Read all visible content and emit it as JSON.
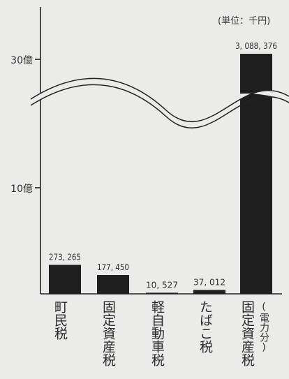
{
  "chart_data": {
    "type": "bar",
    "unit_note": "(単位：千円)",
    "categories": [
      "町民税",
      "固定資産税",
      "軽自動車税",
      "たばこ税",
      "固定資産税"
    ],
    "category_notes": [
      "",
      "",
      "",
      "",
      "(電力分)"
    ],
    "values": [
      273265,
      177450,
      10527,
      37012,
      3088376
    ],
    "value_labels": [
      "273, 265",
      "177, 450",
      "10, 527",
      "37, 012",
      "3, 088, 376"
    ],
    "y_ticks": [
      {
        "value": 1000000,
        "label": "10億"
      },
      {
        "value": 3000000,
        "label": "30億"
      }
    ],
    "axis_break": true,
    "bar_color": "#1e1e1e",
    "grid": false,
    "legend": "none"
  }
}
